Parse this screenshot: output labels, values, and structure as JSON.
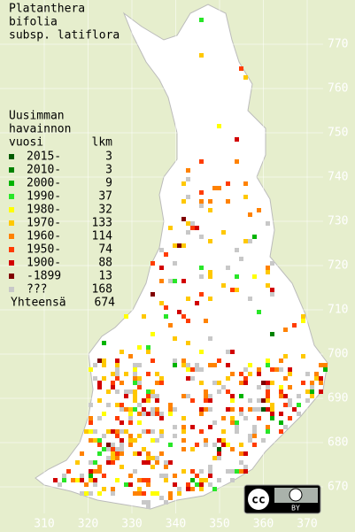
{
  "title": [
    "Platanthera",
    "bifolia",
    "subsp. latiflora"
  ],
  "legend": {
    "title": [
      "Uusimman",
      "havainnon"
    ],
    "col_headers": [
      "vuosi",
      "lkm"
    ],
    "items": [
      {
        "label": "2015-",
        "count": 3,
        "color": "#005a00"
      },
      {
        "label": "2010-",
        "count": 3,
        "color": "#008200"
      },
      {
        "label": "2000-",
        "count": 9,
        "color": "#00b400"
      },
      {
        "label": "1990-",
        "count": 37,
        "color": "#28e628"
      },
      {
        "label": "1980-",
        "count": 32,
        "color": "#ffff00"
      },
      {
        "label": "1970-",
        "count": 133,
        "color": "#ffc800"
      },
      {
        "label": "1960-",
        "count": 114,
        "color": "#ff8200"
      },
      {
        "label": "1950-",
        "count": 74,
        "color": "#ff3c00"
      },
      {
        "label": "1900-",
        "count": 88,
        "color": "#d20000"
      },
      {
        "label": "-1899",
        "count": 13,
        "color": "#800000"
      },
      {
        "label": "???",
        "count": 168,
        "color": "#c8c8c8"
      }
    ],
    "total_label": "Yhteensä",
    "total": 674
  },
  "grid": {
    "y_labels": [
      770,
      760,
      750,
      740,
      730,
      720,
      710,
      700,
      690,
      680,
      670
    ],
    "x_labels": [
      310,
      320,
      330,
      340,
      350,
      360,
      370
    ]
  },
  "license": {
    "icon": "cc",
    "badge": "BY"
  }
}
